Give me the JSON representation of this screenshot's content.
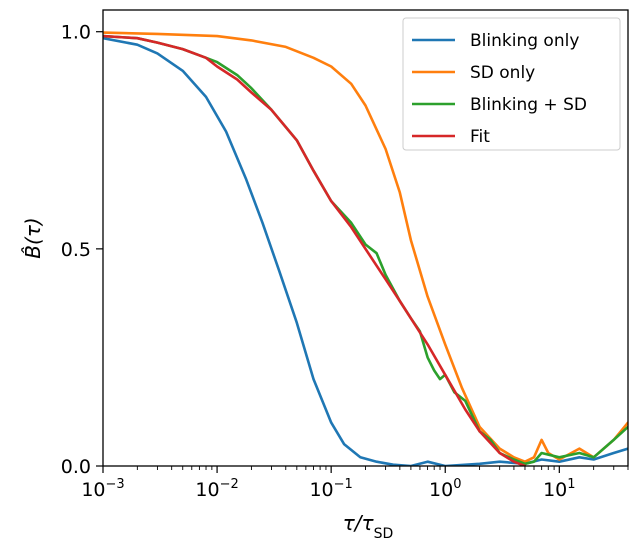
{
  "chart_data": {
    "type": "line",
    "title": "",
    "xlabel": "τ/τ",
    "xlabel_sub": "SD",
    "ylabel": "B̂(τ)",
    "xscale": "log",
    "xlim": [
      0.001,
      40
    ],
    "ylim": [
      0.0,
      1.05
    ],
    "grid": false,
    "legend_position": "top-right",
    "x_ticks": [
      {
        "value": 0.001,
        "base": "10",
        "exp": "−3"
      },
      {
        "value": 0.01,
        "base": "10",
        "exp": "−2"
      },
      {
        "value": 0.1,
        "base": "10",
        "exp": "−1"
      },
      {
        "value": 1,
        "base": "10",
        "exp": "0"
      },
      {
        "value": 10,
        "base": "10",
        "exp": "1"
      }
    ],
    "y_ticks": [
      {
        "value": 0.0,
        "label": "0.0"
      },
      {
        "value": 0.5,
        "label": "0.5"
      },
      {
        "value": 1.0,
        "label": "1.0"
      }
    ],
    "series": [
      {
        "name": "Blinking only",
        "color": "#1f77b4",
        "x": [
          0.001,
          0.002,
          0.003,
          0.005,
          0.008,
          0.012,
          0.018,
          0.025,
          0.035,
          0.05,
          0.07,
          0.1,
          0.13,
          0.18,
          0.25,
          0.35,
          0.5,
          0.7,
          1.0,
          2.0,
          3.0,
          5.0,
          7.0,
          10.0,
          15.0,
          20.0,
          30.0,
          40.0
        ],
        "y": [
          0.985,
          0.97,
          0.95,
          0.91,
          0.85,
          0.77,
          0.66,
          0.56,
          0.45,
          0.33,
          0.2,
          0.1,
          0.05,
          0.02,
          0.01,
          0.003,
          0.0,
          0.01,
          0.0,
          0.005,
          0.01,
          0.005,
          0.015,
          0.01,
          0.02,
          0.015,
          0.03,
          0.04
        ]
      },
      {
        "name": "SD only",
        "color": "#ff7f0e",
        "x": [
          0.001,
          0.003,
          0.01,
          0.02,
          0.04,
          0.07,
          0.1,
          0.15,
          0.2,
          0.3,
          0.4,
          0.5,
          0.7,
          1.0,
          1.4,
          2.0,
          3.0,
          4.0,
          5.0,
          6.0,
          7.0,
          8.0,
          10.0,
          15.0,
          20.0,
          30.0,
          40.0
        ],
        "y": [
          0.998,
          0.995,
          0.99,
          0.98,
          0.965,
          0.94,
          0.92,
          0.88,
          0.83,
          0.73,
          0.63,
          0.52,
          0.39,
          0.28,
          0.18,
          0.09,
          0.04,
          0.02,
          0.01,
          0.02,
          0.06,
          0.03,
          0.015,
          0.04,
          0.02,
          0.06,
          0.1
        ]
      },
      {
        "name": "Blinking + SD",
        "color": "#2ca02c",
        "x": [
          0.001,
          0.002,
          0.003,
          0.005,
          0.008,
          0.01,
          0.015,
          0.02,
          0.03,
          0.05,
          0.07,
          0.1,
          0.15,
          0.2,
          0.25,
          0.3,
          0.4,
          0.5,
          0.6,
          0.7,
          0.8,
          0.9,
          1.0,
          1.2,
          1.5,
          2.0,
          2.5,
          3.0,
          4.0,
          5.0,
          6.0,
          7.0,
          10.0,
          15.0,
          20.0,
          30.0,
          40.0
        ],
        "y": [
          0.99,
          0.985,
          0.975,
          0.96,
          0.94,
          0.93,
          0.9,
          0.87,
          0.82,
          0.75,
          0.68,
          0.61,
          0.56,
          0.51,
          0.49,
          0.44,
          0.38,
          0.34,
          0.31,
          0.25,
          0.22,
          0.2,
          0.21,
          0.17,
          0.15,
          0.08,
          0.06,
          0.03,
          0.015,
          0.005,
          0.01,
          0.03,
          0.02,
          0.03,
          0.02,
          0.06,
          0.09
        ]
      },
      {
        "name": "Fit",
        "color": "#d62728",
        "x": [
          0.001,
          0.002,
          0.003,
          0.005,
          0.008,
          0.01,
          0.015,
          0.02,
          0.03,
          0.05,
          0.07,
          0.1,
          0.15,
          0.2,
          0.3,
          0.4,
          0.5,
          0.7,
          1.0,
          1.5,
          2.0,
          3.0,
          4.0,
          5.0
        ],
        "y": [
          0.99,
          0.985,
          0.975,
          0.96,
          0.94,
          0.92,
          0.89,
          0.86,
          0.82,
          0.75,
          0.68,
          0.61,
          0.55,
          0.5,
          0.43,
          0.38,
          0.34,
          0.28,
          0.21,
          0.13,
          0.08,
          0.03,
          0.01,
          0.0
        ]
      }
    ]
  }
}
